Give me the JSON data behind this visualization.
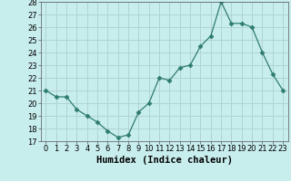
{
  "x": [
    0,
    1,
    2,
    3,
    4,
    5,
    6,
    7,
    8,
    9,
    10,
    11,
    12,
    13,
    14,
    15,
    16,
    17,
    18,
    19,
    20,
    21,
    22,
    23
  ],
  "y": [
    21,
    20.5,
    20.5,
    19.5,
    19,
    18.5,
    17.8,
    17.3,
    17.5,
    19.3,
    20,
    22,
    21.8,
    22.8,
    23,
    24.5,
    25.3,
    28,
    26.3,
    26.3,
    26,
    24,
    22.3,
    21
  ],
  "line_color": "#2e7d6b",
  "marker": "D",
  "marker_size": 2.5,
  "background_color": "#c8eded",
  "grid_color": "#b0d4d4",
  "xlabel": "Humidex (Indice chaleur)",
  "ylim": [
    17,
    28
  ],
  "xlim": [
    -0.5,
    23.5
  ],
  "yticks": [
    17,
    18,
    19,
    20,
    21,
    22,
    23,
    24,
    25,
    26,
    27,
    28
  ],
  "xticks": [
    0,
    1,
    2,
    3,
    4,
    5,
    6,
    7,
    8,
    9,
    10,
    11,
    12,
    13,
    14,
    15,
    16,
    17,
    18,
    19,
    20,
    21,
    22,
    23
  ],
  "tick_fontsize": 6,
  "xlabel_fontsize": 7.5
}
